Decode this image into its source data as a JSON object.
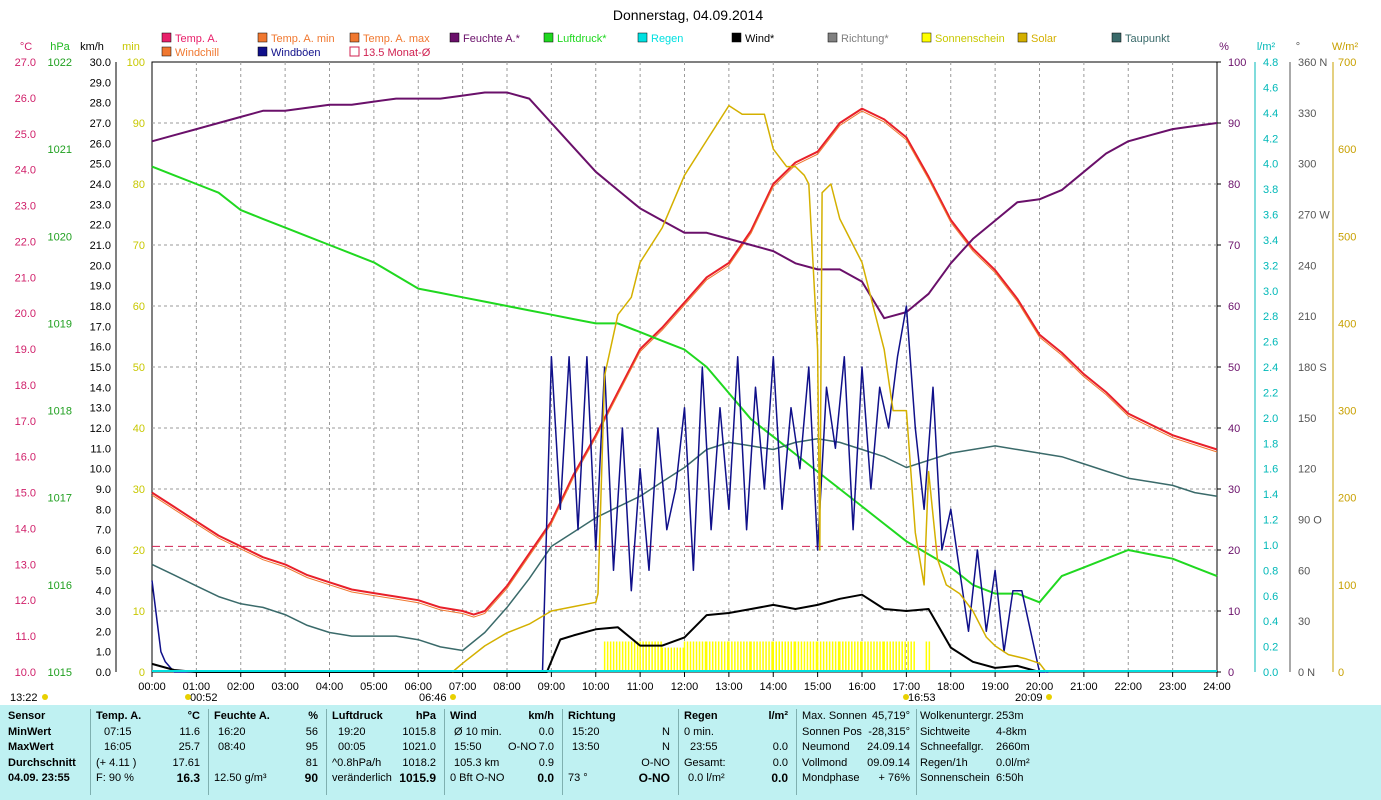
{
  "title": "Donnerstag, 04.09.2014",
  "colors": {
    "temp": "#e8202a",
    "humidity": "#6a106a",
    "pressure": "#20d820",
    "dewpoint": "#3a6a6a",
    "gust": "#10108a",
    "wind": "#000000",
    "solar": "#d4b000",
    "sunshine": "#ffff00",
    "rain": "#00e0e0",
    "monthavg": "#d02050"
  },
  "legend": [
    {
      "label": "Temp. A.",
      "color": "#e8206a",
      "style": "box"
    },
    {
      "label": "Temp. A. min",
      "color": "#f07830",
      "style": "box"
    },
    {
      "label": "Temp. A. max",
      "color": "#f07830",
      "style": "box"
    },
    {
      "label": "Feuchte A.*",
      "color": "#6a106a",
      "style": "box"
    },
    {
      "label": "Luftdruck*",
      "color": "#20d820",
      "style": "box"
    },
    {
      "label": "Regen",
      "color": "#00e0e0",
      "style": "box"
    },
    {
      "label": "Wind*",
      "color": "#000000",
      "style": "box"
    },
    {
      "label": "Richtung*",
      "color": "#808080",
      "style": "box"
    },
    {
      "label": "Sonnenschein",
      "color": "#ffff00",
      "style": "box"
    },
    {
      "label": "Solar",
      "color": "#d4b000",
      "style": "box"
    },
    {
      "label": "Taupunkt",
      "color": "#3a6a6a",
      "style": "box"
    },
    {
      "label": "Windchill",
      "color": "#f07830",
      "style": "box"
    },
    {
      "label": "Windböen",
      "color": "#10108a",
      "style": "box"
    },
    {
      "label": "13.5 Monat-Ø",
      "color": "#d02050",
      "style": "outline"
    }
  ],
  "axis_units": {
    "temp": "°C",
    "pressure": "hPa",
    "wind": "km/h",
    "min": "min",
    "percent": "%",
    "rain": "l/m²",
    "dir": "°",
    "solar": "W/m²"
  },
  "axes": {
    "temp_ticks": [
      "27.0",
      "26.0",
      "25.0",
      "24.0",
      "23.0",
      "22.0",
      "21.0",
      "20.0",
      "19.0",
      "18.0",
      "17.0",
      "16.0",
      "15.0",
      "14.0",
      "13.0",
      "12.0",
      "11.0",
      "10.0"
    ],
    "pressure_ticks": [
      "1022",
      "1021",
      "1020",
      "1019",
      "1018",
      "1017",
      "1016",
      "1015"
    ],
    "wind_ticks": [
      "30.0",
      "29.0",
      "28.0",
      "27.0",
      "26.0",
      "25.0",
      "24.0",
      "23.0",
      "22.0",
      "21.0",
      "20.0",
      "19.0",
      "18.0",
      "17.0",
      "16.0",
      "15.0",
      "14.0",
      "13.0",
      "12.0",
      "11.0",
      "10.0",
      "9.0",
      "8.0",
      "7.0",
      "6.0",
      "5.0",
      "4.0",
      "3.0",
      "2.0",
      "1.0",
      "0.0"
    ],
    "min_ticks": [
      "100",
      "90",
      "80",
      "70",
      "60",
      "50",
      "40",
      "30",
      "20",
      "10",
      "0"
    ],
    "percent_ticks": [
      "100",
      "90",
      "80",
      "70",
      "60",
      "50",
      "40",
      "30",
      "20",
      "10",
      "0"
    ],
    "rain_ticks": [
      "4.8",
      "4.6",
      "4.4",
      "4.2",
      "4.0",
      "3.8",
      "3.6",
      "3.4",
      "3.2",
      "3.0",
      "2.8",
      "2.6",
      "2.4",
      "2.2",
      "2.0",
      "1.8",
      "1.6",
      "1.4",
      "1.2",
      "1.0",
      "0.8",
      "0.6",
      "0.4",
      "0.2",
      "0.0"
    ],
    "dir_ticks": [
      "360 N",
      "330",
      "300",
      "270 W",
      "240",
      "210",
      "180 S",
      "150",
      "120",
      "90  O",
      "60",
      "30",
      "0   N"
    ],
    "solar_ticks": [
      "700",
      "600",
      "500",
      "400",
      "300",
      "200",
      "100",
      "0"
    ],
    "time_ticks": [
      "00:00",
      "01:00",
      "02:00",
      "03:00",
      "04:00",
      "05:00",
      "06:00",
      "07:00",
      "08:00",
      "09:00",
      "10:00",
      "11:00",
      "12:00",
      "13:00",
      "14:00",
      "15:00",
      "16:00",
      "17:00",
      "18:00",
      "19:00",
      "20:00",
      "21:00",
      "22:00",
      "23:00",
      "24:00"
    ],
    "time_markers": [
      "13:22",
      "00:52",
      "06:46",
      "16:53",
      "20:09"
    ]
  },
  "chart_data": {
    "type": "line",
    "x_unit": "hour of day",
    "x_range": [
      0,
      24
    ],
    "reference_line": {
      "label": "13.5 Monat-Ø",
      "value": 13.5
    },
    "series": [
      {
        "name": "Temp. A.",
        "axis": "°C",
        "range": [
          10,
          27
        ],
        "x": [
          0,
          0.5,
          1,
          1.5,
          2,
          2.5,
          3,
          3.5,
          4,
          4.5,
          5,
          5.5,
          6,
          6.5,
          7,
          7.25,
          7.5,
          8,
          8.5,
          9,
          9.5,
          10,
          10.5,
          11,
          11.5,
          12,
          12.5,
          13,
          13.5,
          14,
          14.5,
          15,
          15.5,
          16,
          16.5,
          17,
          17.5,
          18,
          18.5,
          19,
          19.5,
          20,
          20.5,
          21,
          21.5,
          22,
          22.5,
          23,
          23.5,
          24
        ],
        "y": [
          15.0,
          14.6,
          14.2,
          13.8,
          13.5,
          13.2,
          13.0,
          12.7,
          12.5,
          12.3,
          12.2,
          12.1,
          12.0,
          11.8,
          11.7,
          11.6,
          11.7,
          12.4,
          13.3,
          14.2,
          15.5,
          16.6,
          17.8,
          19.0,
          19.6,
          20.3,
          21.0,
          21.4,
          22.3,
          23.6,
          24.2,
          24.5,
          25.3,
          25.7,
          25.4,
          24.9,
          23.8,
          22.6,
          21.8,
          21.2,
          20.4,
          19.4,
          18.9,
          18.3,
          17.8,
          17.2,
          16.9,
          16.6,
          16.4,
          16.2
        ]
      },
      {
        "name": "Feuchte A.*",
        "axis": "%",
        "range": [
          0,
          100
        ],
        "x": [
          0,
          0.5,
          1,
          1.5,
          2,
          2.5,
          3,
          3.5,
          4,
          4.5,
          5,
          5.5,
          6,
          6.5,
          7,
          7.5,
          8,
          8.5,
          9,
          9.5,
          10,
          10.5,
          11,
          11.5,
          12,
          12.5,
          13,
          13.5,
          14,
          14.5,
          15,
          15.5,
          16,
          16.5,
          17,
          17.5,
          18,
          18.5,
          19,
          19.5,
          20,
          20.5,
          21,
          21.5,
          22,
          22.5,
          23,
          23.5,
          24
        ],
        "y": [
          87,
          88,
          89,
          90,
          91,
          92,
          92,
          92.5,
          93,
          93,
          93.5,
          94,
          94,
          94,
          94.5,
          95,
          95,
          94,
          90,
          86,
          82,
          79,
          76,
          74,
          72,
          72,
          71,
          70,
          69,
          67,
          66,
          66,
          64,
          58,
          59,
          62,
          67,
          71,
          74,
          77,
          77.5,
          79,
          82,
          85,
          87,
          88,
          89,
          89.5,
          90
        ]
      },
      {
        "name": "Luftdruck*",
        "axis": "hPa",
        "range": [
          1015,
          1022
        ],
        "x": [
          0,
          0.5,
          1,
          1.5,
          2,
          2.5,
          3,
          3.5,
          4,
          4.5,
          5,
          5.5,
          6,
          6.5,
          7,
          7.5,
          8,
          8.5,
          9,
          9.5,
          10,
          10.5,
          11,
          11.5,
          12,
          12.5,
          13,
          13.5,
          14,
          14.5,
          15,
          15.5,
          16,
          16.5,
          17,
          17.5,
          18,
          18.5,
          19,
          19.5,
          20,
          20.5,
          21,
          21.5,
          22,
          22.5,
          23,
          23.5,
          24
        ],
        "y": [
          1020.8,
          1020.7,
          1020.6,
          1020.5,
          1020.3,
          1020.2,
          1020.1,
          1020.0,
          1019.9,
          1019.8,
          1019.7,
          1019.55,
          1019.4,
          1019.35,
          1019.3,
          1019.25,
          1019.2,
          1019.15,
          1019.1,
          1019.05,
          1019.0,
          1019.0,
          1018.9,
          1018.8,
          1018.7,
          1018.5,
          1018.2,
          1017.9,
          1017.7,
          1017.5,
          1017.3,
          1017.1,
          1016.9,
          1016.7,
          1016.5,
          1016.35,
          1016.2,
          1016.0,
          1015.9,
          1015.9,
          1015.8,
          1016.1,
          1016.2,
          1016.3,
          1016.4,
          1016.35,
          1016.3,
          1016.2,
          1016.1
        ]
      },
      {
        "name": "Taupunkt",
        "axis": "°C",
        "range": [
          10,
          27
        ],
        "x": [
          0,
          0.5,
          1,
          1.5,
          2,
          2.5,
          3,
          3.5,
          4,
          4.5,
          5,
          5.5,
          6,
          6.5,
          7,
          7.5,
          8,
          8.5,
          9,
          9.5,
          10,
          10.5,
          11,
          11.5,
          12,
          12.5,
          13,
          13.5,
          14,
          14.5,
          15,
          15.5,
          16,
          16.5,
          17,
          17.5,
          18,
          18.5,
          19,
          19.5,
          20,
          20.5,
          21,
          21.5,
          22,
          22.5,
          23,
          23.5,
          24
        ],
        "y": [
          13.0,
          12.7,
          12.4,
          12.1,
          11.9,
          11.8,
          11.6,
          11.3,
          11.1,
          11.0,
          11.0,
          11.0,
          10.9,
          10.7,
          10.6,
          11.1,
          11.8,
          12.6,
          13.5,
          13.9,
          14.3,
          14.6,
          14.9,
          15.3,
          15.7,
          16.2,
          16.4,
          16.3,
          16.2,
          16.4,
          16.5,
          16.4,
          16.2,
          16.0,
          15.7,
          15.9,
          16.1,
          16.2,
          16.3,
          16.2,
          16.1,
          16.0,
          15.8,
          15.6,
          15.4,
          15.3,
          15.2,
          15.0,
          14.9
        ]
      },
      {
        "name": "Windböen",
        "axis": "km/h",
        "range": [
          0,
          30
        ],
        "x": [
          0,
          0.2,
          0.3,
          0.5,
          1,
          8.8,
          9.0,
          9.2,
          9.4,
          9.6,
          9.8,
          10.0,
          10.2,
          10.4,
          10.6,
          10.8,
          11.0,
          11.2,
          11.4,
          11.6,
          11.8,
          12.0,
          12.2,
          12.4,
          12.6,
          12.8,
          13.0,
          13.2,
          13.4,
          13.6,
          13.8,
          14.0,
          14.2,
          14.4,
          14.6,
          14.8,
          15.0,
          15.2,
          15.4,
          15.6,
          15.8,
          16.0,
          16.2,
          16.4,
          16.6,
          16.8,
          17.0,
          17.2,
          17.4,
          17.6,
          17.8,
          18.0,
          18.2,
          18.4,
          18.6,
          18.8,
          19.0,
          19.2,
          19.4,
          19.6,
          19.8,
          20.0,
          20.2
        ],
        "y": [
          4.5,
          1.0,
          0.5,
          0.0,
          0.0,
          0,
          15.5,
          8,
          15.5,
          7,
          15.5,
          6,
          15,
          5,
          12,
          4,
          10,
          5,
          12,
          7,
          9,
          13,
          5,
          15,
          7,
          13,
          8,
          15.5,
          7,
          14,
          9,
          15.5,
          8,
          13,
          10,
          15,
          6,
          14,
          11,
          15.5,
          7,
          15,
          9,
          14,
          12,
          15.5,
          18,
          12,
          8,
          14,
          6,
          8,
          5,
          2,
          6,
          2,
          5,
          1,
          4,
          4,
          2,
          0,
          0
        ]
      },
      {
        "name": "Wind*",
        "axis": "km/h",
        "range": [
          0,
          30
        ],
        "x": [
          0,
          0.5,
          1,
          8.9,
          9.2,
          9.5,
          10,
          10.5,
          11,
          11.5,
          12,
          12.5,
          13,
          13.5,
          14,
          14.5,
          15,
          15.5,
          16,
          16.5,
          17,
          17.5,
          18,
          18.5,
          19,
          19.5,
          20
        ],
        "y": [
          0.4,
          0.1,
          0,
          0,
          1.6,
          1.8,
          2.1,
          2.2,
          1.3,
          1.3,
          1.7,
          2.8,
          2.9,
          3.1,
          3.3,
          3.1,
          3.3,
          3.6,
          3.8,
          3.1,
          3.0,
          3.1,
          1.2,
          0.5,
          0.2,
          0.3,
          0
        ]
      },
      {
        "name": "Solar",
        "axis": "W/m²",
        "range": [
          0,
          700
        ],
        "x": [
          6.77,
          7,
          7.5,
          8,
          8.5,
          9,
          9.5,
          10,
          10.05,
          10.2,
          10.5,
          10.8,
          11,
          11.5,
          12,
          12.5,
          13,
          13.3,
          13.6,
          13.8,
          14,
          14.3,
          14.5,
          14.7,
          14.8,
          15,
          15.05,
          15.1,
          15.3,
          15.5,
          15.8,
          16,
          16.5,
          16.7,
          17,
          17.2,
          17.4,
          17.5,
          17.7,
          17.9,
          18.2,
          18.5,
          18.8,
          19,
          19.3,
          19.7,
          20,
          20.15
        ],
        "y": [
          0,
          10,
          30,
          45,
          55,
          70,
          75,
          80,
          90,
          340,
          410,
          430,
          470,
          510,
          570,
          610,
          650,
          640,
          640,
          640,
          600,
          580,
          580,
          570,
          560,
          370,
          140,
          550,
          560,
          520,
          490,
          470,
          370,
          300,
          300,
          160,
          100,
          230,
          130,
          100,
          90,
          70,
          40,
          30,
          20,
          15,
          10,
          0
        ]
      },
      {
        "name": "Sonnenschein",
        "axis": "min",
        "range": [
          0,
          100
        ],
        "x": [
          10.2,
          11,
          11.5,
          12,
          12.5,
          13,
          13.5,
          14,
          14.5,
          15,
          15.5,
          16,
          16.5,
          17.2,
          17.45,
          17.55
        ],
        "y": [
          5,
          5,
          4,
          5,
          5,
          5,
          5,
          5,
          5,
          5,
          5,
          5,
          5,
          0,
          5,
          0
        ]
      }
    ]
  },
  "stats": {
    "col_sensor": {
      "header": "Sensor",
      "rows": [
        "MinWert",
        "MaxWert",
        "Durchschnitt"
      ],
      "footer": "04.09. 23:55"
    },
    "col_temp": {
      "header": "Temp. A.",
      "unit": "°C",
      "rows": [
        [
          "07:15",
          "11.6"
        ],
        [
          "16:05",
          "25.7"
        ],
        [
          "(+ 4.11 )",
          "17.61"
        ]
      ],
      "footer_left": "F: 90 %",
      "footer_value": "16.3"
    },
    "col_hum": {
      "header": "Feuchte A.",
      "unit": "%",
      "rows": [
        [
          "16:20",
          "56"
        ],
        [
          "08:40",
          "95"
        ],
        [
          "",
          "81"
        ]
      ],
      "footer_left": "12.50 g/m³",
      "footer_value": "90"
    },
    "col_press": {
      "header": "Luftdruck",
      "unit": "hPa",
      "rows": [
        [
          "19:20",
          "1015.8"
        ],
        [
          "00:05",
          "1021.0"
        ],
        [
          "^0.8hPa/h",
          "1018.2"
        ]
      ],
      "footer_left": "veränderlich",
      "footer_value": "1015.9"
    },
    "col_wind": {
      "header": "Wind",
      "unit": "km/h",
      "rows": [
        [
          "Ø 10 min.",
          "",
          "0.0"
        ],
        [
          "15:50",
          "O-NO",
          "7.0"
        ],
        [
          "105.3 km",
          "",
          "0.9"
        ]
      ],
      "footer_left": "0 Bft O-NO",
      "footer_value": "0.0"
    },
    "col_dir": {
      "header": "Richtung",
      "unit": "",
      "rows": [
        [
          "15:20",
          "N"
        ],
        [
          "13:50",
          "N"
        ],
        [
          "",
          "O-NO"
        ]
      ],
      "footer_left": "73 °",
      "footer_value": "O-NO"
    },
    "col_rain": {
      "header": "Regen",
      "unit": "l/m²",
      "rows": [
        [
          "0 min.",
          ""
        ],
        [
          "23:55",
          "0.0"
        ],
        [
          "Gesamt:",
          "0.0"
        ]
      ],
      "footer_left": "0.0 l/m²",
      "footer_value": "0.0"
    },
    "col_astro": {
      "rows": [
        [
          "Max. Sonnen",
          "45,719°"
        ],
        [
          "Sonnen Pos",
          "-28,315°"
        ],
        [
          "Neumond",
          "24.09.14"
        ],
        [
          "Vollmond",
          "09.09.14"
        ],
        [
          "Mondphase",
          "+ 76%"
        ]
      ]
    },
    "col_misc": {
      "rows": [
        [
          "Wolkenuntergr.",
          "253m"
        ],
        [
          "Sichtweite",
          "4-8km"
        ],
        [
          "Schneefallgr.",
          "2660m"
        ],
        [
          "Regen/1h",
          "0.0l/m²"
        ],
        [
          "Sonnenschein",
          "6:50h"
        ]
      ]
    }
  }
}
